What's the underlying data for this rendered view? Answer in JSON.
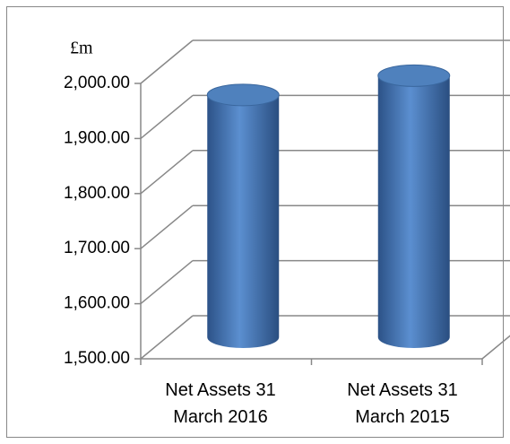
{
  "chart_data": {
    "type": "cylinder-bar",
    "unit_label": "£m",
    "categories": [
      "Net Assets 31 March 2016",
      "Net Assets 31 March 2015"
    ],
    "values": [
      1940,
      1975
    ],
    "color": "#4f81bd",
    "ylim": [
      1500,
      2000
    ],
    "yticks": [
      {
        "value": 1500,
        "label": "1,500.00"
      },
      {
        "value": 1600,
        "label": "1,600.00"
      },
      {
        "value": 1700,
        "label": "1,700.00"
      },
      {
        "value": 1800,
        "label": "1,800.00"
      },
      {
        "value": 1900,
        "label": "1,900.00"
      },
      {
        "value": 2000,
        "label": "2,000.00"
      }
    ],
    "grid": true
  }
}
